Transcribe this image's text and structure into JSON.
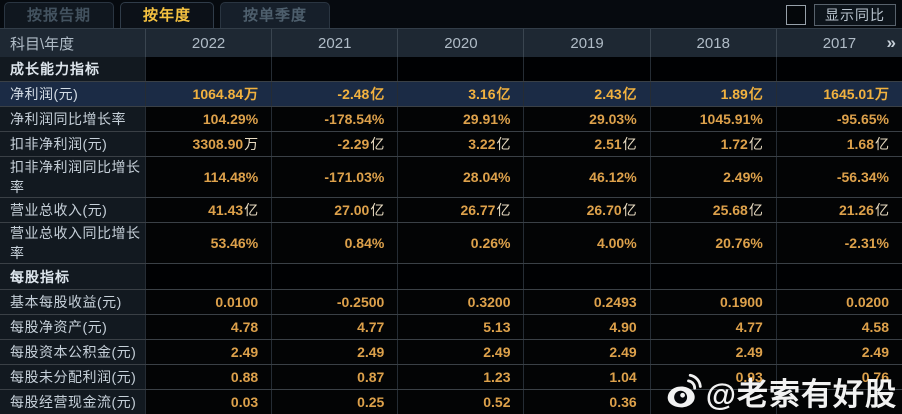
{
  "tabs": [
    {
      "label": "按报告期",
      "active": false
    },
    {
      "label": "按年度",
      "active": true
    },
    {
      "label": "按单季度",
      "active": false
    }
  ],
  "controls": {
    "show_yoy_label": "显示同比",
    "checkbox_checked": false
  },
  "table": {
    "corner_label": "科目\\年度",
    "years": [
      "2022",
      "2021",
      "2020",
      "2019",
      "2018",
      "2017"
    ],
    "more_icon": "»",
    "rows": [
      {
        "type": "section",
        "label": "成长能力指标",
        "values": [
          "",
          "",
          "",
          "",
          "",
          ""
        ]
      },
      {
        "type": "highlight",
        "label": "净利润(元)",
        "values": [
          "1064.84万",
          "-2.48亿",
          "3.16亿",
          "2.43亿",
          "1.89亿",
          "1645.01万"
        ]
      },
      {
        "type": "data",
        "label": "净利润同比增长率",
        "values": [
          "104.29%",
          "-178.54%",
          "29.91%",
          "29.03%",
          "1045.91%",
          "-95.65%"
        ]
      },
      {
        "type": "data",
        "label": "扣非净利润(元)",
        "values": [
          "3308.90万",
          "-2.29亿",
          "3.22亿",
          "2.51亿",
          "1.72亿",
          "1.68亿"
        ]
      },
      {
        "type": "data",
        "label": "扣非净利润同比增长率",
        "values": [
          "114.48%",
          "-171.03%",
          "28.04%",
          "46.12%",
          "2.49%",
          "-56.34%"
        ]
      },
      {
        "type": "data",
        "label": "营业总收入(元)",
        "values": [
          "41.43亿",
          "27.00亿",
          "26.77亿",
          "26.70亿",
          "25.68亿",
          "21.26亿"
        ]
      },
      {
        "type": "data",
        "label": "营业总收入同比增长率",
        "values": [
          "53.46%",
          "0.84%",
          "0.26%",
          "4.00%",
          "20.76%",
          "-2.31%"
        ]
      },
      {
        "type": "section",
        "label": "每股指标",
        "values": [
          "",
          "",
          "",
          "",
          "",
          ""
        ]
      },
      {
        "type": "data",
        "label": "基本每股收益(元)",
        "values": [
          "0.0100",
          "-0.2500",
          "0.3200",
          "0.2493",
          "0.1900",
          "0.0200"
        ]
      },
      {
        "type": "data",
        "label": "每股净资产(元)",
        "values": [
          "4.78",
          "4.77",
          "5.13",
          "4.90",
          "4.77",
          "4.58"
        ]
      },
      {
        "type": "data",
        "label": "每股资本公积金(元)",
        "values": [
          "2.49",
          "2.49",
          "2.49",
          "2.49",
          "2.49",
          "2.49"
        ]
      },
      {
        "type": "data",
        "label": "每股未分配利润(元)",
        "values": [
          "0.88",
          "0.87",
          "1.23",
          "1.04",
          "0.93",
          "0.76"
        ]
      },
      {
        "type": "data",
        "label": "每股经营现金流(元)",
        "values": [
          "0.03",
          "0.25",
          "0.52",
          "0.36",
          "",
          ""
        ]
      }
    ]
  },
  "watermark": {
    "icon": "weibo-icon",
    "text": "@老索有好股"
  },
  "colors": {
    "accent_gold": "#dda14b",
    "highlight_gold": "#f2b23f",
    "highlight_row_bg": "#1b2b45",
    "active_tab_text": "#f5c241"
  }
}
